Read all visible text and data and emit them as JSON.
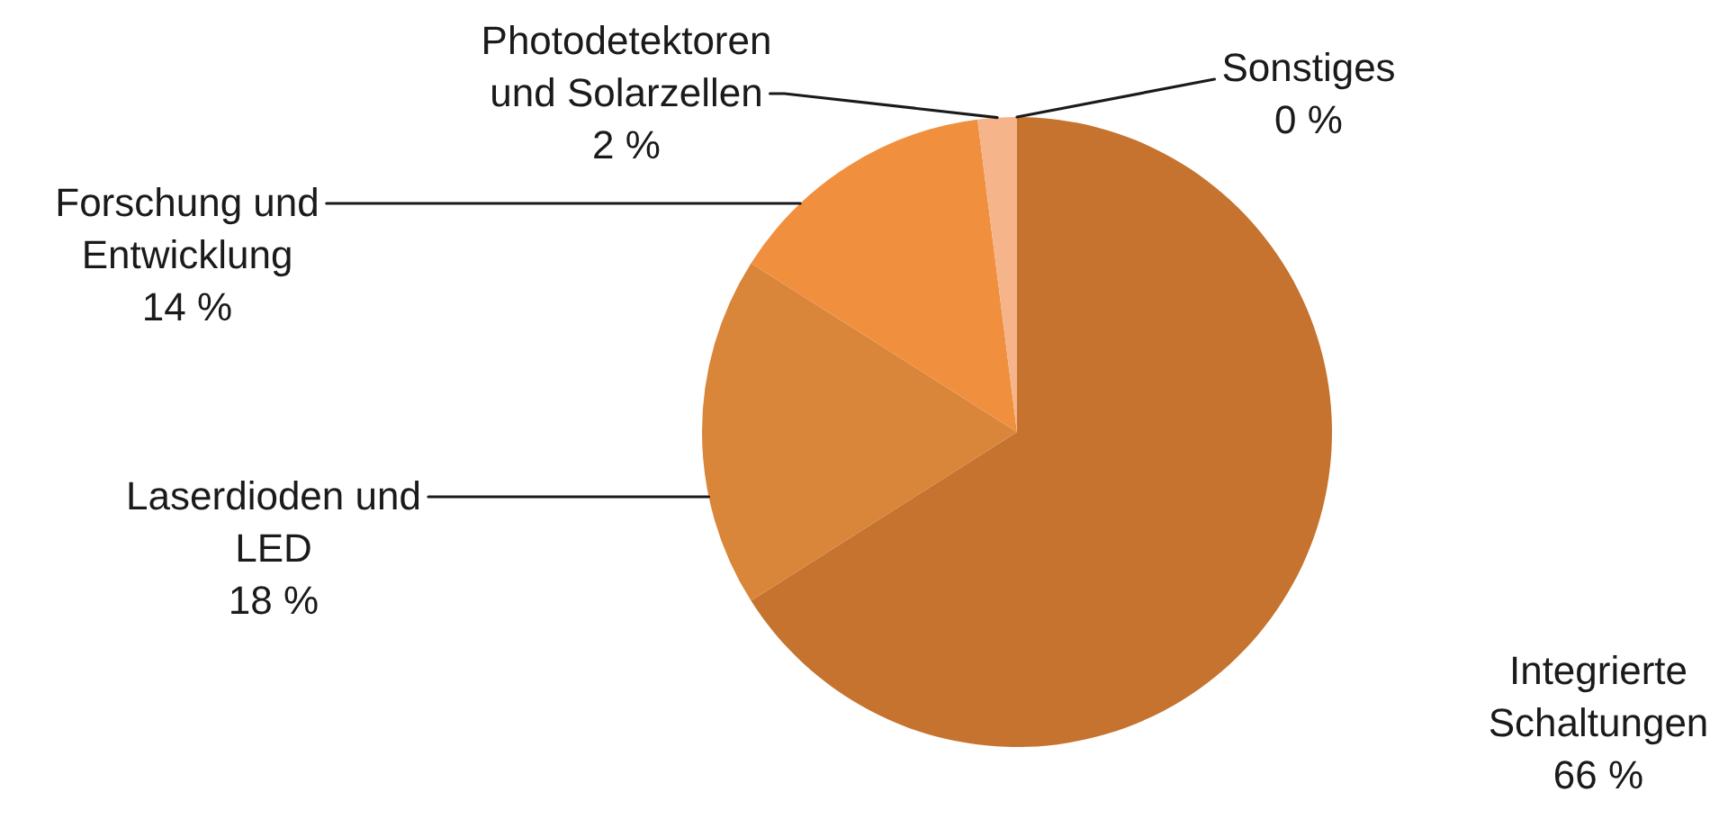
{
  "chart_data": {
    "type": "pie",
    "categories": [
      "Integrierte Schaltungen",
      "Laserdioden und LED",
      "Forschung und Entwicklung",
      "Photodetektoren und Solarzellen",
      "Sonstiges"
    ],
    "values": [
      66,
      18,
      14,
      2,
      0
    ],
    "value_labels": [
      "66 %",
      "18 %",
      "14 %",
      "2 %",
      "0 %"
    ],
    "colors": [
      "#c5732f",
      "#d9853a",
      "#f0903f",
      "#f5b48a",
      "#b07030"
    ],
    "legend": false
  }
}
